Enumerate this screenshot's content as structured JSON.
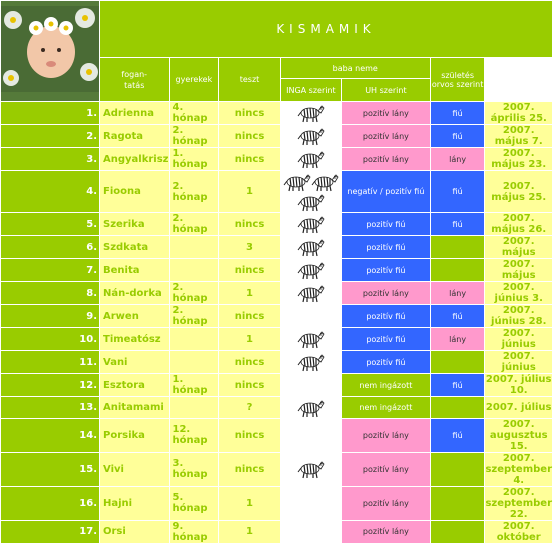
{
  "title": "KISMAMIK",
  "headers": {
    "fogantatas": "fogan-\ntatás",
    "gyerekek": "gyerekek",
    "teszt": "teszt",
    "baba_neme": "baba neme",
    "inga": "INGA szerint",
    "uh": "UH szerint",
    "szules": "születés orvos szerint"
  },
  "rows": [
    {
      "num": "1.",
      "name": "Adrienna",
      "month": "4. hónap",
      "kids": "nincs",
      "zebras": 1,
      "inga": "pozitív lány",
      "inga_color": "pink",
      "uh": "fiú",
      "uh_color": "blue",
      "date": "2007. április 25."
    },
    {
      "num": "2.",
      "name": "Ragota",
      "month": "2. hónap",
      "kids": "nincs",
      "zebras": 1,
      "inga": "pozitív lány",
      "inga_color": "pink",
      "uh": "fiú",
      "uh_color": "blue",
      "date": "2007. május 7."
    },
    {
      "num": "3.",
      "name": "Angyalkrisz",
      "month": "1. hónap",
      "kids": "nincs",
      "zebras": 1,
      "inga": "pozitív lány",
      "inga_color": "pink",
      "uh": "lány",
      "uh_color": "pink",
      "date": "2007. május 23."
    },
    {
      "num": "4.",
      "name": "Fioona",
      "month": "2. hónap",
      "kids": "1",
      "zebras": 3,
      "inga": "negatív / pozitív fiú",
      "inga_color": "blue",
      "uh": "fiú",
      "uh_color": "blue",
      "date": "2007. május 25."
    },
    {
      "num": "5.",
      "name": "Szerika",
      "month": "2. hónap",
      "kids": "nincs",
      "zebras": 1,
      "inga": "pozitív fiú",
      "inga_color": "blue",
      "uh": "fiú",
      "uh_color": "blue",
      "date": "2007. május 26."
    },
    {
      "num": "6.",
      "name": "Szdkata",
      "month": "",
      "kids": "3",
      "zebras": 1,
      "inga": "pozitív fiú",
      "inga_color": "blue",
      "uh": "",
      "uh_color": "green",
      "date": "2007. május"
    },
    {
      "num": "7.",
      "name": "Benita",
      "month": "",
      "kids": "nincs",
      "zebras": 1,
      "inga": "pozitív fiú",
      "inga_color": "blue",
      "uh": "",
      "uh_color": "green",
      "date": "2007. május"
    },
    {
      "num": "8.",
      "name": "Nán-dorka",
      "month": "2. hónap",
      "kids": "1",
      "zebras": 1,
      "inga": "pozitív lány",
      "inga_color": "pink",
      "uh": "lány",
      "uh_color": "pink",
      "date": "2007. június 3."
    },
    {
      "num": "9.",
      "name": "Arwen",
      "month": "2. hónap",
      "kids": "nincs",
      "zebras": 0,
      "inga": "pozitív fiú",
      "inga_color": "blue",
      "uh": "fiú",
      "uh_color": "blue",
      "date": "2007. június 28."
    },
    {
      "num": "10.",
      "name": "Timeatósz",
      "month": "",
      "kids": "1",
      "zebras": 1,
      "inga": "pozitív fiú",
      "inga_color": "blue",
      "uh": "lány",
      "uh_color": "pink",
      "date": "2007. június"
    },
    {
      "num": "11.",
      "name": "Vani",
      "month": "",
      "kids": "nincs",
      "zebras": 1,
      "inga": "pozitív fiú",
      "inga_color": "blue",
      "uh": "",
      "uh_color": "green",
      "date": "2007. június"
    },
    {
      "num": "12.",
      "name": "Esztora",
      "month": "1. hónap",
      "kids": "nincs",
      "zebras": 0,
      "inga": "nem ingázott",
      "inga_color": "green",
      "uh": "fiú",
      "uh_color": "blue",
      "date": "2007. július 10."
    },
    {
      "num": "13.",
      "name": "Anitamami",
      "month": "",
      "kids": "?",
      "zebras": 1,
      "inga": "nem ingázott",
      "inga_color": "green",
      "uh": "",
      "uh_color": "green",
      "date": "2007. július"
    },
    {
      "num": "14.",
      "name": "Porsika",
      "month": "12. hónap",
      "kids": "nincs",
      "zebras": 0,
      "inga": "pozitív lány",
      "inga_color": "pink",
      "uh": "fiú",
      "uh_color": "blue",
      "date": "2007. augusztus 15."
    },
    {
      "num": "15.",
      "name": "Vivi",
      "month": "3. hónap",
      "kids": "nincs",
      "zebras": 1,
      "inga": "pozitív lány",
      "inga_color": "pink",
      "uh": "",
      "uh_color": "green",
      "date": "2007. szeptember 4."
    },
    {
      "num": "16.",
      "name": "Hajni",
      "month": "5. hónap",
      "kids": "1",
      "zebras": 0,
      "inga": "pozitív lány",
      "inga_color": "pink",
      "uh": "",
      "uh_color": "green",
      "date": "2007. szeptember 22."
    },
    {
      "num": "17.",
      "name": "Orsi",
      "month": "9. hónap",
      "kids": "1",
      "zebras": 0,
      "inga": "pozitív lány",
      "inga_color": "pink",
      "uh": "",
      "uh_color": "green",
      "date": "2007. október"
    }
  ],
  "colors": {
    "green": "#99cc00",
    "yellow": "#ffff99",
    "pink": "#ff99cc",
    "blue": "#3366ff"
  },
  "icons": {
    "photo": "baby-photo",
    "test": "zebra-icon"
  }
}
